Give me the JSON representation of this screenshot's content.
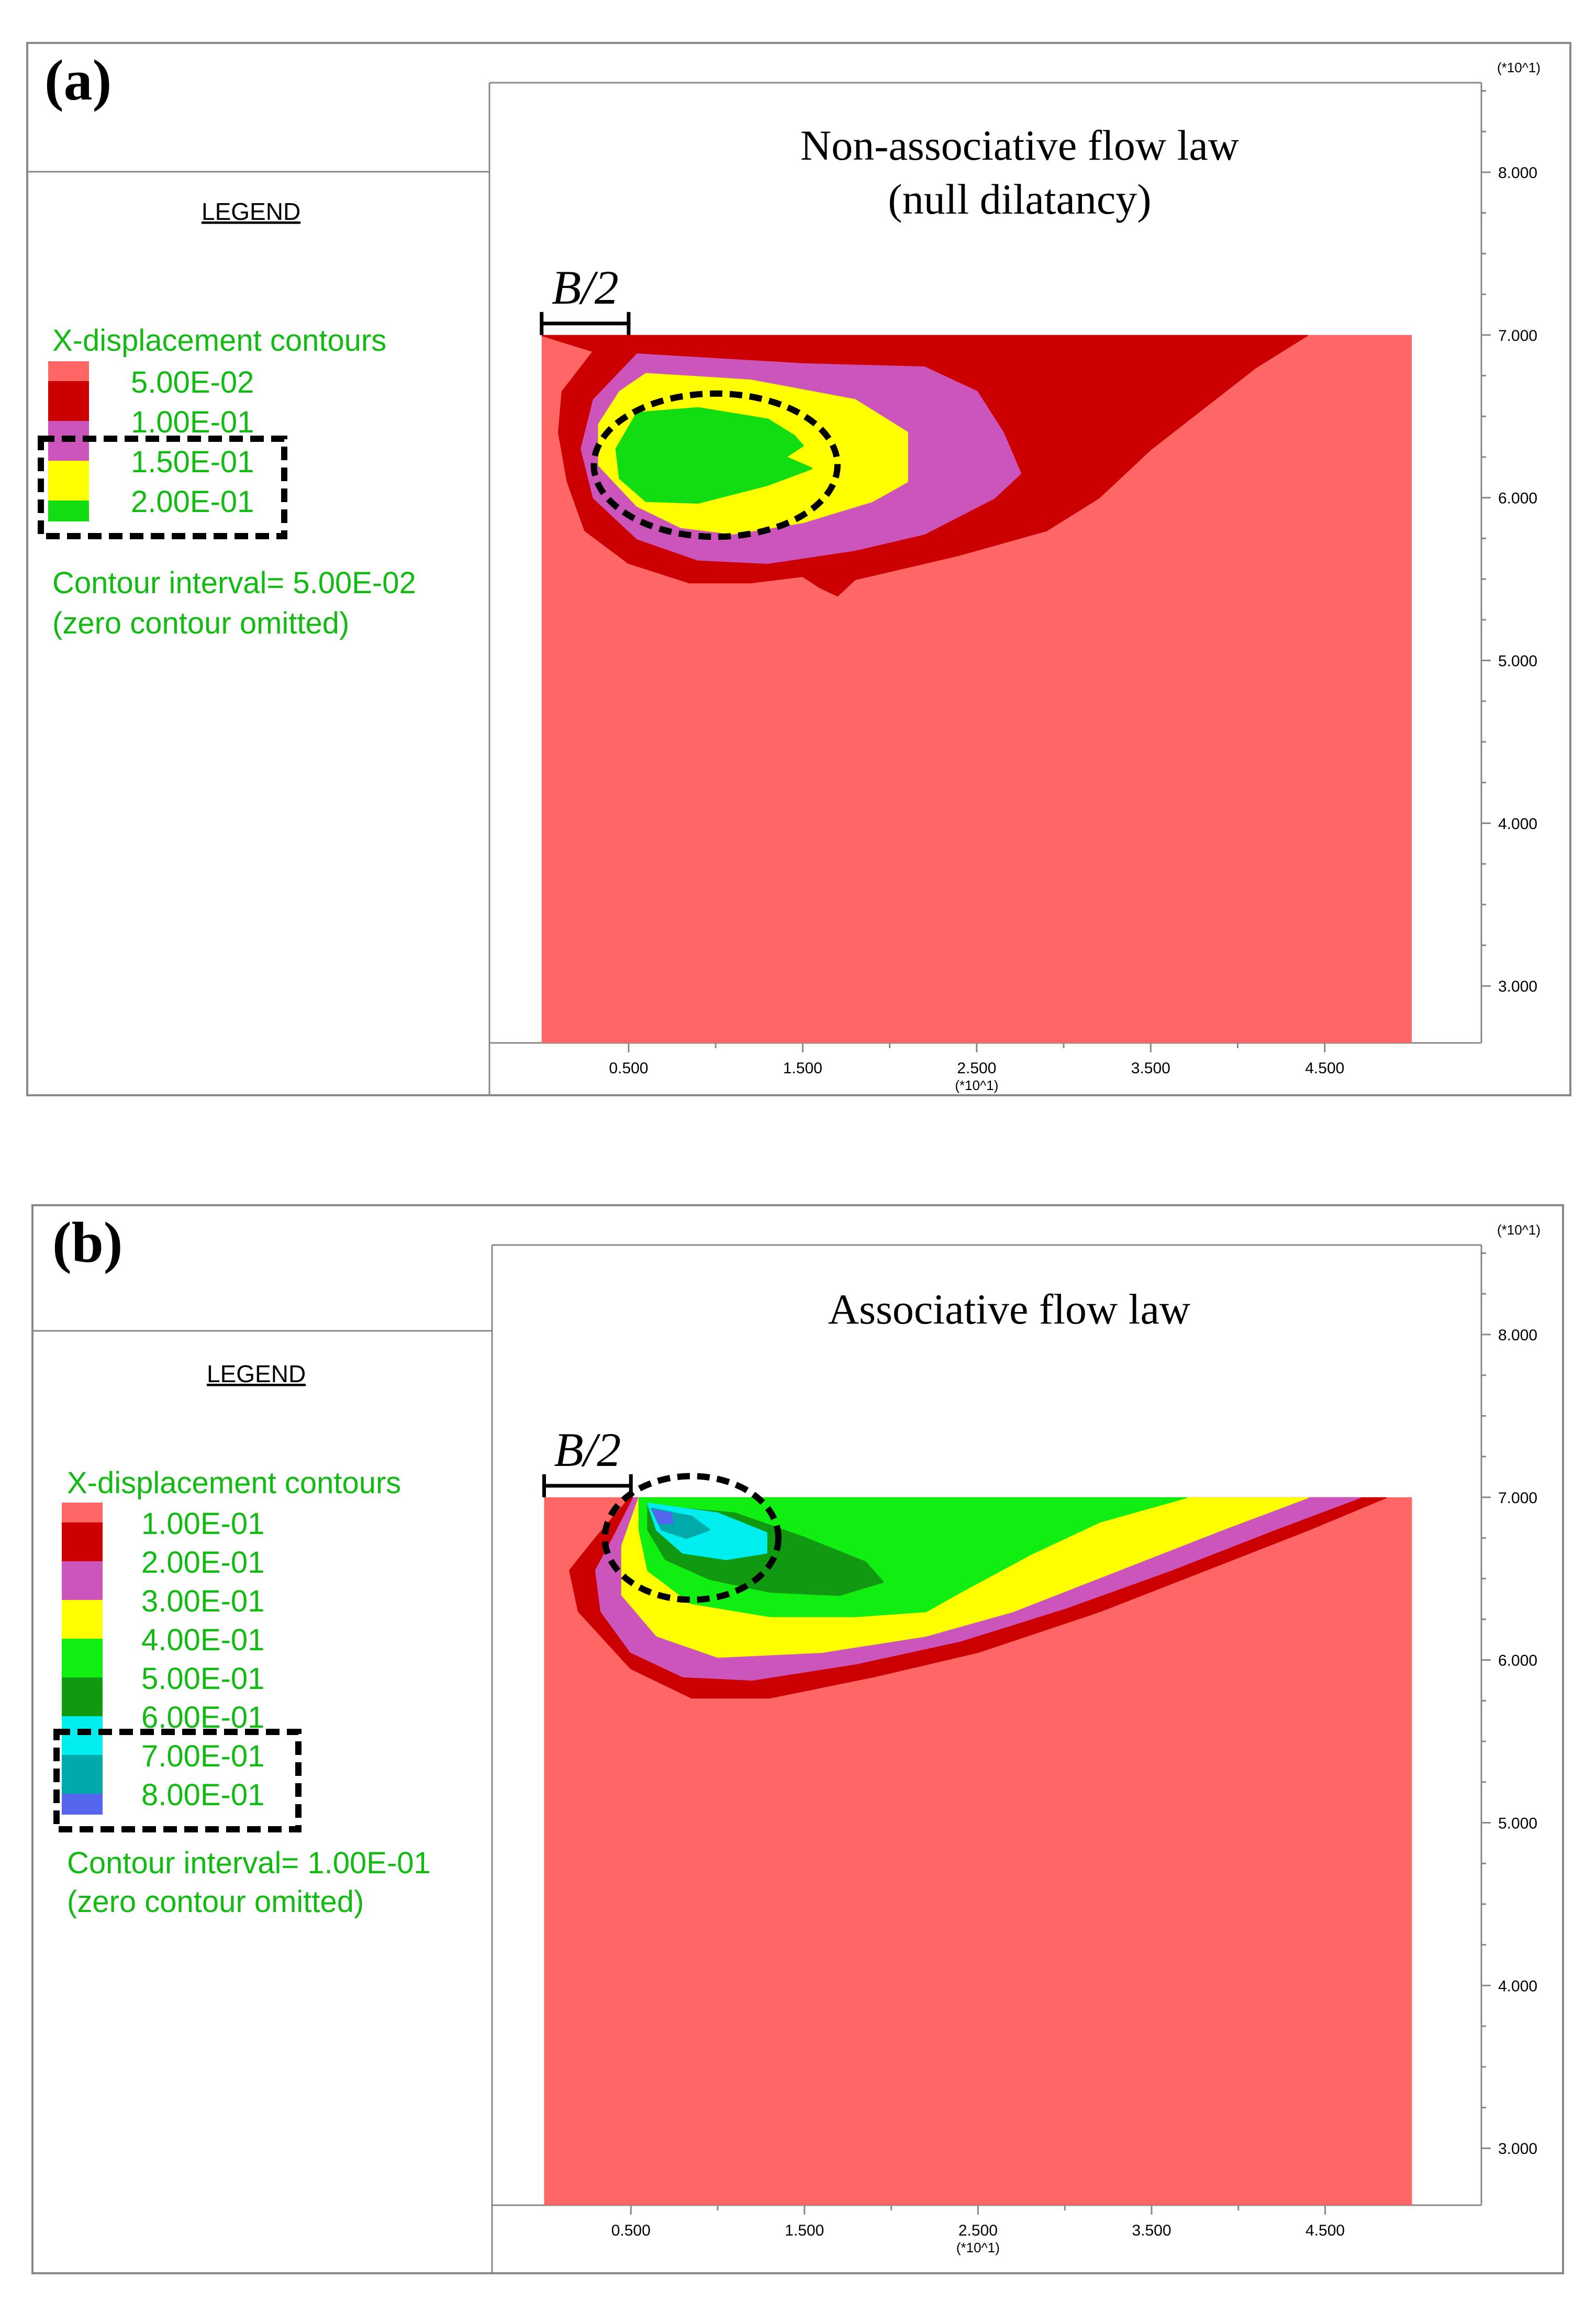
{
  "panels": [
    {
      "id": "a",
      "label": "(a)",
      "legend": {
        "heading": "LEGEND",
        "title": "X-displacement contours",
        "levels": [
          {
            "label": "5.00E-02",
            "color": "#cc0000"
          },
          {
            "label": "1.00E-01",
            "color": "#cc55bb"
          },
          {
            "label": "1.50E-01",
            "color": "#ffff00"
          },
          {
            "label": "2.00E-01",
            "color": "#11dd11"
          }
        ],
        "interval_text": "Contour interval=  5.00E-02",
        "omitted_text": "(zero contour omitted)"
      },
      "plot_title_lines": [
        "Non-associative flow law",
        "(null dilatancy)"
      ],
      "footing_label": "B/2"
    },
    {
      "id": "b",
      "label": "(b)",
      "legend": {
        "heading": "LEGEND",
        "title": "X-displacement contours",
        "levels": [
          {
            "label": "1.00E-01",
            "color": "#cc0000"
          },
          {
            "label": "2.00E-01",
            "color": "#cc55bb"
          },
          {
            "label": "3.00E-01",
            "color": "#ffff00"
          },
          {
            "label": "4.00E-01",
            "color": "#11ee11"
          },
          {
            "label": "5.00E-01",
            "color": "#119911"
          },
          {
            "label": "6.00E-01",
            "color": "#00eeee"
          },
          {
            "label": "7.00E-01",
            "color": "#00aaaa"
          },
          {
            "label": "8.00E-01",
            "color": "#5566ee"
          }
        ],
        "interval_text": "Contour interval=  1.00E-01",
        "omitted_text": "(zero contour omitted)"
      },
      "plot_title_lines": [
        "Associative flow law"
      ],
      "footing_label": "B/2"
    }
  ],
  "chart_data": [
    {
      "type": "contour",
      "panel": "a",
      "title": "Non-associative flow law (null dilatancy)",
      "field": "X-displacement",
      "background_color": "#ff6666",
      "x_ticks": [
        0.5,
        1.5,
        2.5,
        3.5,
        4.5
      ],
      "x_tick_labels": [
        "0.500",
        "1.500",
        "2.500",
        "3.500",
        "4.500"
      ],
      "x_multiplier_label": "(*10^1)",
      "xlim": [
        -0.3,
        5.4
      ],
      "y_ticks": [
        3.0,
        4.0,
        5.0,
        6.0,
        7.0,
        8.0
      ],
      "y_tick_labels": [
        "3.000",
        "4.000",
        "5.000",
        "6.000",
        "7.000",
        "8.000"
      ],
      "y_multiplier_label": "(*10^1)",
      "ylim": [
        2.65,
        8.55
      ],
      "domain": {
        "x": [
          0.0,
          5.0
        ],
        "y": [
          2.65,
          7.0
        ]
      },
      "footing": {
        "x": [
          0.0,
          0.5
        ],
        "label": "B/2"
      },
      "regions": [
        {
          "level": 0.05,
          "color": "#cc0000",
          "outline": [
            [
              0.0,
              7.0
            ],
            [
              4.4,
              7.0
            ],
            [
              4.1,
              6.8
            ],
            [
              3.8,
              6.55
            ],
            [
              3.5,
              6.3
            ],
            [
              3.2,
              6.0
            ],
            [
              2.9,
              5.8
            ],
            [
              2.4,
              5.65
            ],
            [
              1.8,
              5.5
            ],
            [
              1.7,
              5.4
            ],
            [
              1.6,
              5.45
            ],
            [
              1.5,
              5.52
            ],
            [
              1.2,
              5.48
            ],
            [
              0.85,
              5.48
            ],
            [
              0.5,
              5.6
            ],
            [
              0.25,
              5.8
            ],
            [
              0.15,
              6.1
            ],
            [
              0.1,
              6.4
            ],
            [
              0.12,
              6.65
            ],
            [
              0.3,
              6.9
            ]
          ]
        },
        {
          "level": 0.1,
          "color": "#cc55bb",
          "outline": [
            [
              0.55,
              6.88
            ],
            [
              1.5,
              6.82
            ],
            [
              2.2,
              6.8
            ],
            [
              2.5,
              6.65
            ],
            [
              2.65,
              6.4
            ],
            [
              2.75,
              6.15
            ],
            [
              2.6,
              6.0
            ],
            [
              2.2,
              5.78
            ],
            [
              1.8,
              5.68
            ],
            [
              1.3,
              5.6
            ],
            [
              0.9,
              5.62
            ],
            [
              0.55,
              5.75
            ],
            [
              0.3,
              6.0
            ],
            [
              0.23,
              6.3
            ],
            [
              0.3,
              6.6
            ]
          ]
        },
        {
          "level": 0.15,
          "color": "#ffff00",
          "outline": [
            [
              0.6,
              6.76
            ],
            [
              1.2,
              6.72
            ],
            [
              1.8,
              6.6
            ],
            [
              2.1,
              6.4
            ],
            [
              2.1,
              6.1
            ],
            [
              1.9,
              5.98
            ],
            [
              1.5,
              5.85
            ],
            [
              1.1,
              5.78
            ],
            [
              0.8,
              5.82
            ],
            [
              0.55,
              5.95
            ],
            [
              0.33,
              6.2
            ],
            [
              0.33,
              6.45
            ],
            [
              0.45,
              6.65
            ]
          ]
        },
        {
          "level": 0.2,
          "color": "#11dd11",
          "outline": [
            [
              0.55,
              6.52
            ],
            [
              0.9,
              6.55
            ],
            [
              1.3,
              6.48
            ],
            [
              1.45,
              6.38
            ],
            [
              1.5,
              6.32
            ],
            [
              1.4,
              6.25
            ],
            [
              1.55,
              6.18
            ],
            [
              1.3,
              6.08
            ],
            [
              0.9,
              5.97
            ],
            [
              0.6,
              5.98
            ],
            [
              0.45,
              6.12
            ],
            [
              0.43,
              6.3
            ]
          ]
        }
      ],
      "highlight_ellipse": {
        "cx": 1.0,
        "cy": 6.2,
        "rx": 0.7,
        "ry": 0.44
      }
    },
    {
      "type": "contour",
      "panel": "b",
      "title": "Associative flow law",
      "field": "X-displacement",
      "background_color": "#ff6666",
      "x_ticks": [
        0.5,
        1.5,
        2.5,
        3.5,
        4.5
      ],
      "x_tick_labels": [
        "0.500",
        "1.500",
        "2.500",
        "3.500",
        "4.500"
      ],
      "x_multiplier_label": "(*10^1)",
      "xlim": [
        -0.3,
        5.4
      ],
      "y_ticks": [
        3.0,
        4.0,
        5.0,
        6.0,
        7.0,
        8.0
      ],
      "y_tick_labels": [
        "3.000",
        "4.000",
        "5.000",
        "6.000",
        "7.000",
        "8.000"
      ],
      "y_multiplier_label": "(*10^1)",
      "ylim": [
        2.65,
        8.55
      ],
      "domain": {
        "x": [
          0.0,
          5.0
        ],
        "y": [
          2.65,
          7.0
        ]
      },
      "footing": {
        "x": [
          0.0,
          0.5
        ],
        "label": "B/2"
      },
      "regions": [
        {
          "level": 0.1,
          "color": "#cc0000",
          "outline": [
            [
              0.5,
              7.0
            ],
            [
              4.85,
              7.0
            ],
            [
              4.4,
              6.8
            ],
            [
              3.8,
              6.55
            ],
            [
              3.2,
              6.3
            ],
            [
              2.5,
              6.05
            ],
            [
              1.9,
              5.9
            ],
            [
              1.3,
              5.77
            ],
            [
              0.85,
              5.77
            ],
            [
              0.5,
              5.95
            ],
            [
              0.2,
              6.3
            ],
            [
              0.15,
              6.55
            ],
            [
              0.3,
              6.75
            ]
          ]
        },
        {
          "level": 0.2,
          "color": "#cc55bb",
          "outline": [
            [
              0.52,
              7.0
            ],
            [
              4.7,
              7.0
            ],
            [
              4.2,
              6.8
            ],
            [
              3.6,
              6.55
            ],
            [
              3.0,
              6.32
            ],
            [
              2.4,
              6.12
            ],
            [
              1.8,
              5.98
            ],
            [
              1.2,
              5.88
            ],
            [
              0.8,
              5.9
            ],
            [
              0.5,
              6.05
            ],
            [
              0.33,
              6.3
            ],
            [
              0.3,
              6.55
            ],
            [
              0.4,
              6.75
            ]
          ]
        },
        {
          "level": 0.3,
          "color": "#ffff00",
          "outline": [
            [
              0.55,
              7.0
            ],
            [
              4.4,
              7.0
            ],
            [
              3.9,
              6.8
            ],
            [
              3.3,
              6.55
            ],
            [
              2.7,
              6.3
            ],
            [
              2.2,
              6.15
            ],
            [
              1.6,
              6.05
            ],
            [
              1.0,
              6.02
            ],
            [
              0.65,
              6.15
            ],
            [
              0.45,
              6.4
            ],
            [
              0.45,
              6.7
            ]
          ]
        },
        {
          "level": 0.4,
          "color": "#11ee11",
          "outline": [
            [
              0.55,
              7.0
            ],
            [
              3.7,
              7.0
            ],
            [
              3.2,
              6.85
            ],
            [
              2.8,
              6.65
            ],
            [
              2.4,
              6.42
            ],
            [
              2.2,
              6.3
            ],
            [
              1.8,
              6.27
            ],
            [
              1.3,
              6.27
            ],
            [
              0.85,
              6.35
            ],
            [
              0.6,
              6.55
            ],
            [
              0.55,
              6.8
            ]
          ]
        },
        {
          "level": 0.5,
          "color": "#119911",
          "outline": [
            [
              0.6,
              6.95
            ],
            [
              1.1,
              6.9
            ],
            [
              1.5,
              6.75
            ],
            [
              1.85,
              6.6
            ],
            [
              1.95,
              6.48
            ],
            [
              1.7,
              6.4
            ],
            [
              1.3,
              6.42
            ],
            [
              0.95,
              6.5
            ],
            [
              0.7,
              6.62
            ],
            [
              0.6,
              6.8
            ]
          ]
        },
        {
          "level": 0.6,
          "color": "#00eeee",
          "outline": [
            [
              0.6,
              6.96
            ],
            [
              1.0,
              6.9
            ],
            [
              1.28,
              6.78
            ],
            [
              1.28,
              6.66
            ],
            [
              1.05,
              6.62
            ],
            [
              0.8,
              6.66
            ],
            [
              0.65,
              6.8
            ]
          ]
        },
        {
          "level": 0.7,
          "color": "#00aaaa",
          "outline": [
            [
              0.62,
              6.93
            ],
            [
              0.85,
              6.88
            ],
            [
              0.95,
              6.8
            ],
            [
              0.82,
              6.75
            ],
            [
              0.68,
              6.8
            ]
          ]
        },
        {
          "level": 0.8,
          "color": "#5566ee",
          "outline": [
            [
              0.63,
              6.92
            ],
            [
              0.73,
              6.9
            ],
            [
              0.74,
              6.84
            ],
            [
              0.66,
              6.84
            ]
          ]
        }
      ],
      "highlight_ellipse": {
        "cx": 0.85,
        "cy": 6.75,
        "rx": 0.5,
        "ry": 0.38
      }
    }
  ]
}
